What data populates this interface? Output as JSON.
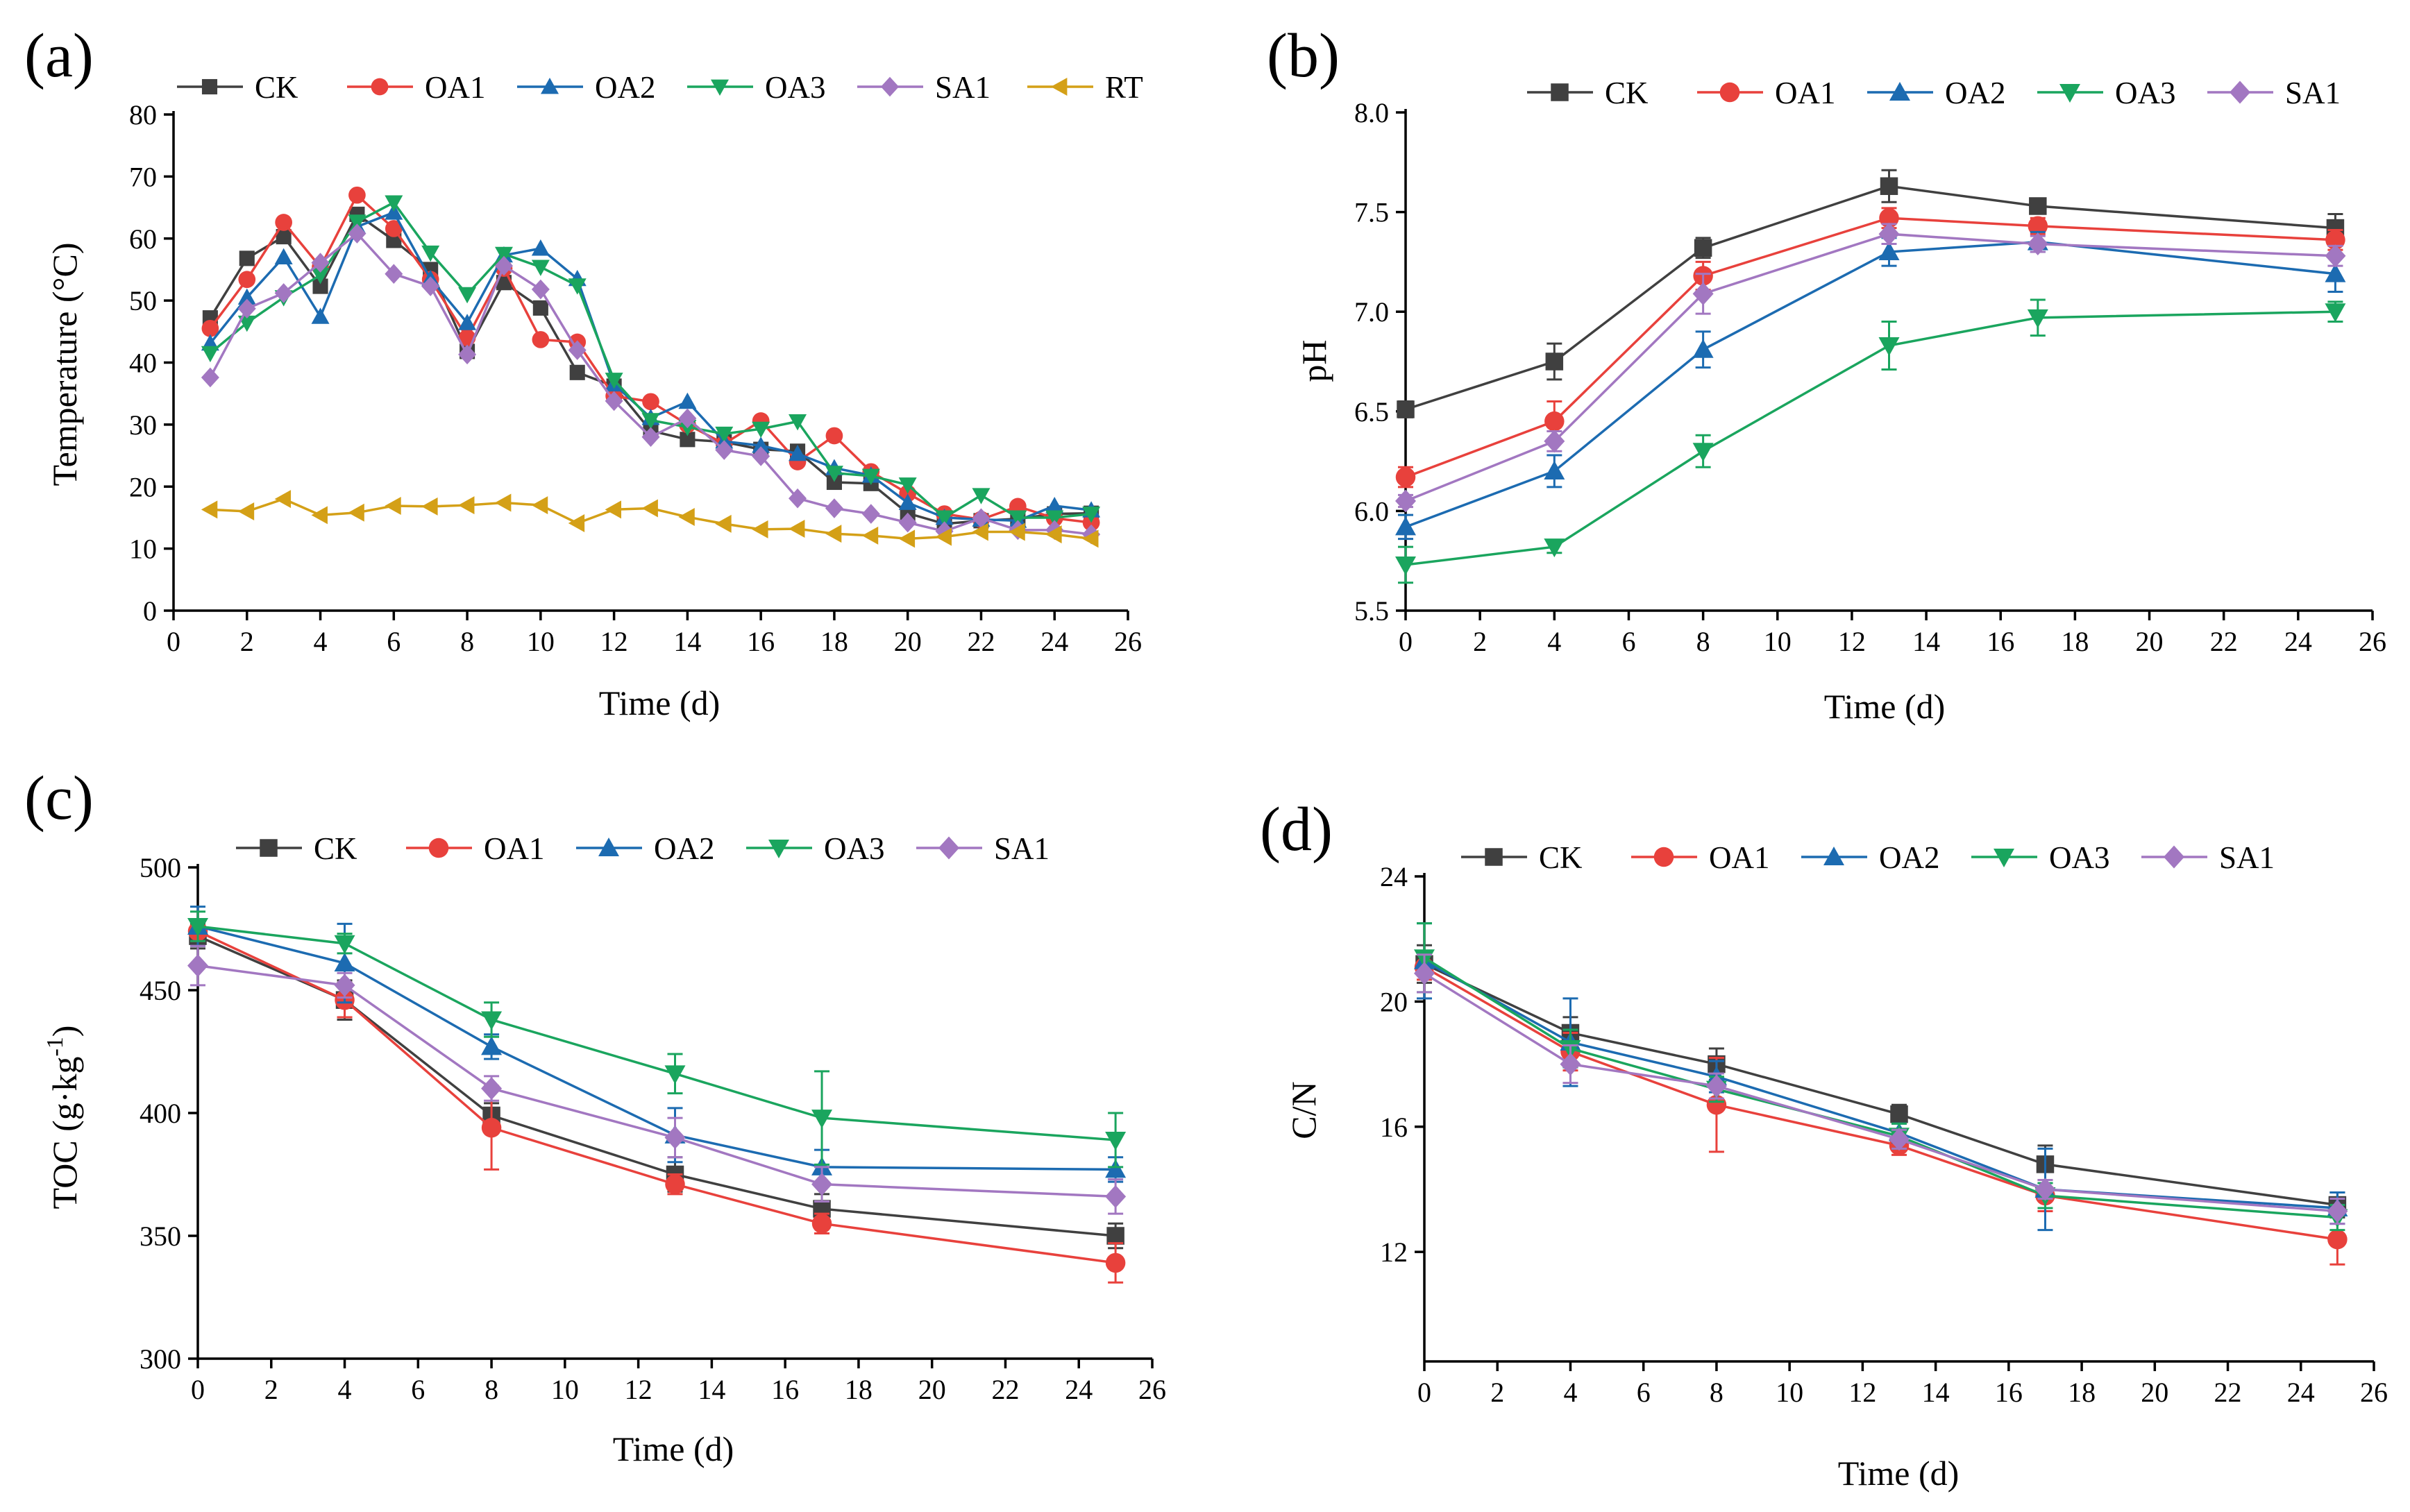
{
  "chart_data": [
    {
      "type": "line",
      "panel_label": "(a)",
      "xlabel": "Time (d)",
      "ylabel": "Temperature (°C)",
      "xlim": [
        0,
        26
      ],
      "ylim": [
        0,
        80
      ],
      "xticks": [
        0,
        2,
        4,
        6,
        8,
        10,
        12,
        14,
        16,
        18,
        20,
        22,
        24,
        26
      ],
      "yticks": [
        0,
        10,
        20,
        30,
        40,
        50,
        60,
        70,
        80
      ],
      "legend": "top",
      "x": [
        1,
        2,
        3,
        4,
        5,
        6,
        7,
        8,
        9,
        10,
        11,
        12,
        13,
        14,
        15,
        16,
        17,
        18,
        19,
        20,
        21,
        22,
        23,
        24,
        25
      ],
      "series": [
        {
          "name": "CK",
          "color": "#404040",
          "marker": "square",
          "values": [
            47.2,
            56.8,
            60.3,
            52.3,
            63.9,
            59.7,
            55.0,
            41.8,
            52.9,
            48.8,
            38.4,
            36.2,
            29.0,
            27.6,
            27.2,
            26.0,
            25.7,
            20.7,
            20.5,
            15.7,
            14.0,
            14.5,
            14.8,
            15.6,
            15.7
          ]
        },
        {
          "name": "OA1",
          "color": "#e8413c",
          "marker": "circle",
          "values": [
            45.5,
            53.4,
            62.6,
            55.4,
            67.0,
            61.6,
            53.4,
            44.0,
            55.2,
            43.7,
            43.3,
            34.6,
            33.7,
            30.0,
            26.9,
            30.6,
            24.0,
            28.2,
            22.4,
            18.9,
            15.6,
            14.7,
            16.8,
            14.9,
            14.2
          ]
        },
        {
          "name": "OA2",
          "color": "#1c6bb1",
          "marker": "triangle-up",
          "values": [
            43.1,
            50.5,
            57.0,
            47.4,
            61.9,
            64.2,
            53.5,
            46.4,
            57.3,
            58.4,
            53.5,
            36.5,
            31.1,
            33.7,
            27.3,
            26.6,
            25.3,
            23.0,
            21.8,
            17.4,
            15.0,
            14.7,
            14.5,
            16.9,
            16.2
          ]
        },
        {
          "name": "OA3",
          "color": "#1aa55e",
          "marker": "triangle-down",
          "values": [
            41.5,
            46.4,
            50.5,
            54.1,
            62.7,
            65.8,
            57.7,
            51.0,
            57.5,
            55.4,
            52.4,
            37.2,
            30.7,
            29.6,
            28.5,
            29.3,
            30.5,
            22.2,
            21.7,
            20.3,
            15.0,
            18.6,
            15.0,
            15.0,
            15.6
          ]
        },
        {
          "name": "SA1",
          "color": "#a277c1",
          "marker": "diamond",
          "values": [
            37.6,
            48.7,
            51.2,
            56.1,
            60.8,
            54.3,
            52.3,
            41.3,
            55.6,
            51.8,
            42.0,
            33.8,
            28.0,
            31.0,
            25.9,
            24.9,
            18.1,
            16.5,
            15.6,
            14.2,
            12.8,
            14.9,
            13.0,
            13.0,
            12.3
          ]
        },
        {
          "name": "RT",
          "color": "#d4a017",
          "marker": "triangle-left",
          "values": [
            16.3,
            16.0,
            18.0,
            15.4,
            15.8,
            16.9,
            16.8,
            17.0,
            17.4,
            17.0,
            14.1,
            16.3,
            16.5,
            15.1,
            14.0,
            13.1,
            13.2,
            12.4,
            12.1,
            11.6,
            11.9,
            12.7,
            12.7,
            12.3,
            11.6
          ]
        }
      ]
    },
    {
      "type": "line",
      "panel_label": "(b)",
      "xlabel": "Time (d)",
      "ylabel": "pH",
      "xlim": [
        0,
        26
      ],
      "ylim": [
        5.5,
        8.0
      ],
      "xticks": [
        0,
        2,
        4,
        6,
        8,
        10,
        12,
        14,
        16,
        18,
        20,
        22,
        24,
        26
      ],
      "yticks": [
        "5.5",
        "6.0",
        "6.5",
        "7.0",
        "7.5",
        "8.0"
      ],
      "legend": "top",
      "x": [
        0,
        4,
        8,
        13,
        17,
        25
      ],
      "series": [
        {
          "name": "CK",
          "color": "#404040",
          "marker": "square",
          "values": [
            6.51,
            6.75,
            7.32,
            7.63,
            7.53,
            7.42
          ],
          "errors": [
            0.04,
            0.09,
            0.05,
            0.08,
            0.03,
            0.07
          ]
        },
        {
          "name": "OA1",
          "color": "#e8413c",
          "marker": "circle",
          "values": [
            6.17,
            6.45,
            7.18,
            7.47,
            7.43,
            7.36
          ],
          "errors": [
            0.05,
            0.1,
            0.07,
            0.05,
            0.04,
            0.05
          ]
        },
        {
          "name": "OA2",
          "color": "#1c6bb1",
          "marker": "triangle-up",
          "values": [
            5.92,
            6.2,
            6.81,
            7.3,
            7.35,
            7.19
          ],
          "errors": [
            0.06,
            0.08,
            0.09,
            0.07,
            0.05,
            0.09
          ]
        },
        {
          "name": "OA3",
          "color": "#1aa55e",
          "marker": "triangle-down",
          "values": [
            5.73,
            5.82,
            6.3,
            6.83,
            6.97,
            7.0
          ],
          "errors": [
            0.09,
            0.03,
            0.08,
            0.12,
            0.09,
            0.05
          ]
        },
        {
          "name": "SA1",
          "color": "#a277c1",
          "marker": "diamond",
          "values": [
            6.05,
            6.35,
            7.09,
            7.39,
            7.34,
            7.28
          ],
          "errors": [
            0.03,
            0.05,
            0.1,
            0.05,
            0.04,
            0.05
          ]
        }
      ]
    },
    {
      "type": "line",
      "panel_label": "(c)",
      "xlabel": "Time (d)",
      "ylabel": "TOC (g·kg",
      "ylabel_sup": "-1",
      "ylabel_end": ")",
      "xlim": [
        0,
        26
      ],
      "ylim": [
        300,
        500
      ],
      "xticks": [
        0,
        2,
        4,
        6,
        8,
        10,
        12,
        14,
        16,
        18,
        20,
        22,
        24,
        26
      ],
      "yticks": [
        300,
        350,
        400,
        450,
        500
      ],
      "legend": "top",
      "x": [
        0,
        4,
        8,
        13,
        17,
        25
      ],
      "series": [
        {
          "name": "CK",
          "color": "#404040",
          "marker": "square",
          "values": [
            472,
            446,
            399,
            375,
            361,
            350
          ],
          "errors": [
            5,
            8,
            5,
            7,
            6,
            5
          ]
        },
        {
          "name": "OA1",
          "color": "#e8413c",
          "marker": "circle",
          "values": [
            474,
            446,
            394,
            371,
            355,
            339
          ],
          "errors": [
            4,
            7,
            17,
            4,
            4,
            8
          ]
        },
        {
          "name": "OA2",
          "color": "#1c6bb1",
          "marker": "triangle-up",
          "values": [
            476,
            461,
            427,
            391,
            378,
            377
          ],
          "errors": [
            8,
            16,
            5,
            11,
            7,
            5
          ]
        },
        {
          "name": "OA3",
          "color": "#1aa55e",
          "marker": "triangle-down",
          "values": [
            476,
            469,
            438,
            416,
            398,
            389
          ],
          "errors": [
            6,
            4,
            7,
            8,
            19,
            11
          ]
        },
        {
          "name": "SA1",
          "color": "#a277c1",
          "marker": "diamond",
          "values": [
            460,
            452,
            410,
            390,
            371,
            366
          ],
          "errors": [
            8,
            5,
            5,
            8,
            7,
            7
          ]
        }
      ]
    },
    {
      "type": "line",
      "panel_label": "(d)",
      "xlabel": "Time (d)",
      "ylabel": "C/N",
      "xlim": [
        0,
        26
      ],
      "ylim": [
        8.5,
        24
      ],
      "xticks": [
        0,
        2,
        4,
        6,
        8,
        10,
        12,
        14,
        16,
        18,
        20,
        22,
        24,
        26
      ],
      "yticks": [
        12,
        16,
        20,
        24
      ],
      "legend": "top",
      "x": [
        0,
        4,
        8,
        13,
        17,
        25
      ],
      "series": [
        {
          "name": "CK",
          "color": "#404040",
          "marker": "square",
          "values": [
            21.2,
            19.0,
            18.0,
            16.4,
            14.8,
            13.5
          ],
          "errors": [
            0.6,
            0.5,
            0.5,
            0.3,
            0.6,
            0.4
          ]
        },
        {
          "name": "OA1",
          "color": "#e8413c",
          "marker": "circle",
          "values": [
            21.1,
            18.4,
            16.7,
            15.4,
            13.8,
            12.4
          ],
          "errors": [
            0.4,
            0.6,
            1.5,
            0.3,
            0.5,
            0.8
          ]
        },
        {
          "name": "OA2",
          "color": "#1c6bb1",
          "marker": "triangle-up",
          "values": [
            21.3,
            18.7,
            17.6,
            15.8,
            14.0,
            13.4
          ],
          "errors": [
            1.2,
            1.4,
            0.5,
            0.3,
            1.3,
            0.5
          ]
        },
        {
          "name": "OA3",
          "color": "#1aa55e",
          "marker": "triangle-down",
          "values": [
            21.4,
            18.5,
            17.2,
            15.7,
            13.8,
            13.1
          ],
          "errors": [
            1.1,
            0.6,
            0.4,
            0.4,
            0.4,
            0.4
          ]
        },
        {
          "name": "SA1",
          "color": "#a277c1",
          "marker": "diamond",
          "values": [
            20.9,
            18.0,
            17.3,
            15.6,
            14.0,
            13.3
          ],
          "errors": [
            0.6,
            0.6,
            0.4,
            0.3,
            0.3,
            0.4
          ]
        }
      ]
    }
  ]
}
